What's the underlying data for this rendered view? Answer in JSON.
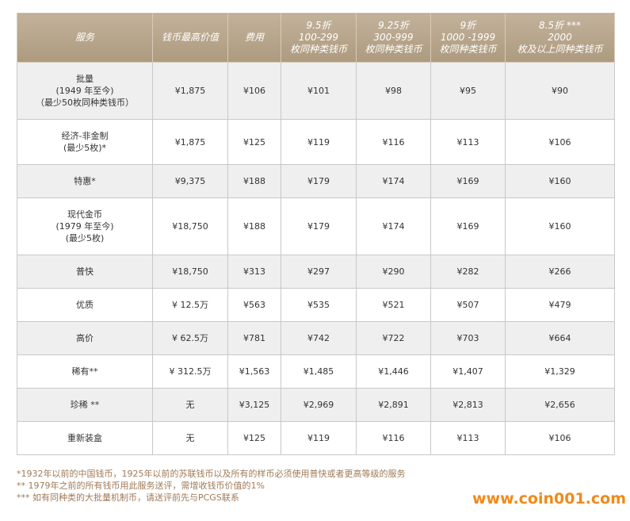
{
  "table": {
    "header": [
      [
        "服务"
      ],
      [
        "钱币最高价值"
      ],
      [
        "费用"
      ],
      [
        "9.5折",
        "100-299",
        "枚同种类钱币"
      ],
      [
        "9.25折",
        "300-999",
        "枚同种类钱币"
      ],
      [
        "9折",
        "1000 -1999",
        "枚同种类钱币"
      ],
      [
        "8.5折 ***",
        "2000",
        "枚及以上同种类钱币"
      ]
    ],
    "rows": [
      [
        [
          "批量",
          "(1949 年至今)",
          "（最少50枚同种类钱币）"
        ],
        "¥1,875",
        "¥106",
        "¥101",
        "¥98",
        "¥95",
        "¥90"
      ],
      [
        [
          "经济-非金制",
          "(最少5枚)*"
        ],
        "¥1,875",
        "¥125",
        "¥119",
        "¥116",
        "¥113",
        "¥106"
      ],
      [
        [
          "特惠*"
        ],
        "¥9,375",
        "¥188",
        "¥179",
        "¥174",
        "¥169",
        "¥160"
      ],
      [
        [
          "现代金币",
          "(1979 年至今)",
          "(最少5枚)"
        ],
        "¥18,750",
        "¥188",
        "¥179",
        "¥174",
        "¥169",
        "¥160"
      ],
      [
        [
          "普快"
        ],
        "¥18,750",
        "¥313",
        "¥297",
        "¥290",
        "¥282",
        "¥266"
      ],
      [
        [
          "优质"
        ],
        "¥ 12.5万",
        "¥563",
        "¥535",
        "¥521",
        "¥507",
        "¥479"
      ],
      [
        [
          "高价"
        ],
        "¥ 62.5万",
        "¥781",
        "¥742",
        "¥722",
        "¥703",
        "¥664"
      ],
      [
        [
          "稀有**"
        ],
        "¥ 312.5万",
        "¥1,563",
        "¥1,485",
        "¥1,446",
        "¥1,407",
        "¥1,329"
      ],
      [
        [
          "珍稀 **"
        ],
        "无",
        "¥3,125",
        "¥2,969",
        "¥2,891",
        "¥2,813",
        "¥2,656"
      ],
      [
        [
          "重新装盒"
        ],
        "无",
        "¥125",
        "¥119",
        "¥116",
        "¥113",
        "¥106"
      ]
    ]
  },
  "footnotes": [
    "*1932年以前的中国钱币，1925年以前的苏联钱币以及所有的样币必须使用普快或者更高等级的服务",
    "** 1979年之前的所有钱币用此服务送评，需增收钱币价值的1%",
    "*** 如有同种类的大批量机制币，请送评前先与PCGS联系"
  ],
  "watermark": "www.coin001.com"
}
